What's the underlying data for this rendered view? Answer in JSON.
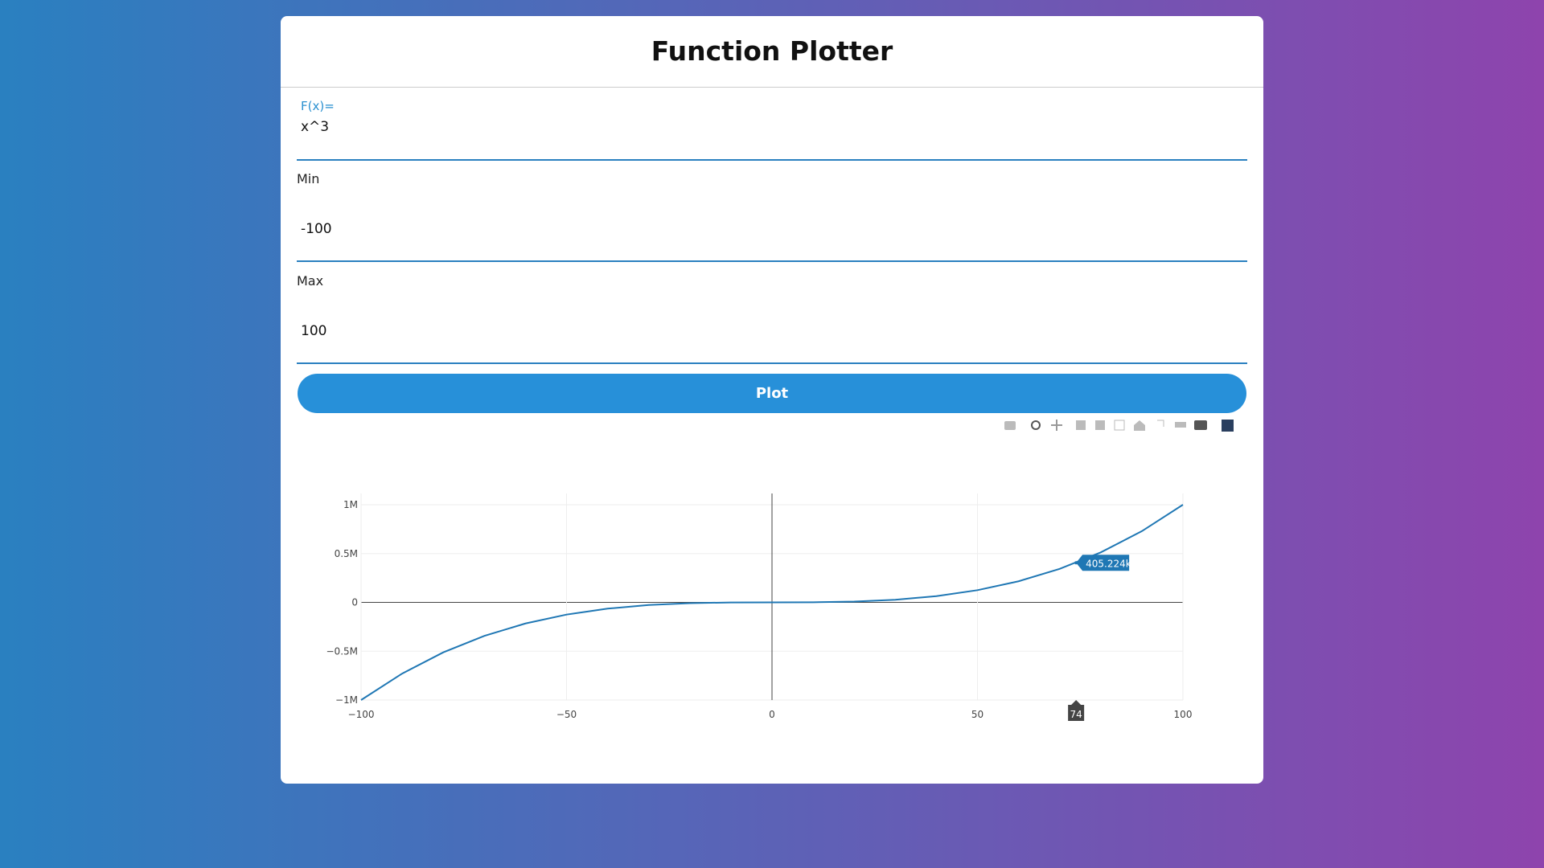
{
  "header": {
    "title": "Function Plotter"
  },
  "form": {
    "function_label": "F(x)=",
    "function_value": "x^3",
    "min_label": "Min",
    "min_value": "-100",
    "max_label": "Max",
    "max_value": "100",
    "button": "Plot"
  },
  "chart_data": {
    "type": "line",
    "color": "#1f77b4",
    "x": [
      -100,
      -90,
      -80,
      -70,
      -60,
      -50,
      -40,
      -30,
      -20,
      -10,
      0,
      10,
      20,
      30,
      40,
      50,
      60,
      70,
      80,
      90,
      100
    ],
    "values": [
      -1000000,
      -729000,
      -512000,
      -343000,
      -216000,
      -125000,
      -64000,
      -27000,
      -8000,
      -1000,
      0,
      1000,
      8000,
      27000,
      64000,
      125000,
      216000,
      343000,
      512000,
      729000,
      1000000
    ],
    "xlim": [
      -100,
      100
    ],
    "ylim": [
      -1000000,
      1000000
    ],
    "xticks": [
      {
        "value": -100,
        "label": "−100"
      },
      {
        "value": -50,
        "label": "−50"
      },
      0,
      50,
      100
    ],
    "yticks": [
      {
        "value": -1000000,
        "label": "−1M"
      },
      {
        "value": -500000,
        "label": "−0.5M"
      },
      0,
      {
        "value": 500000,
        "label": "0.5M"
      },
      {
        "value": 1000000,
        "label": "1M"
      }
    ],
    "grid": true,
    "hover": {
      "x": 74,
      "y": 405224,
      "y_label": "405.224k"
    }
  }
}
